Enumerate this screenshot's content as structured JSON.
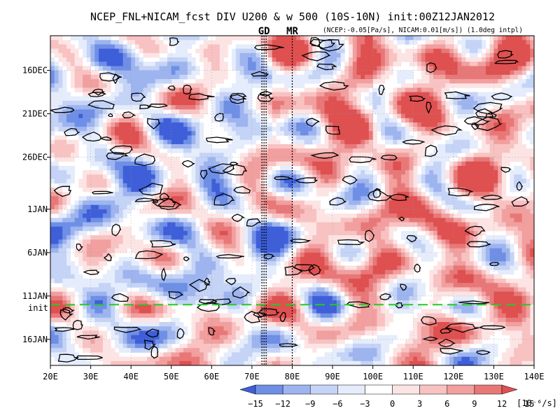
{
  "chart_data": {
    "type": "heatmap",
    "title": "NCEP_FNL+NICAM_fcst DIV U200 & w 500 (10S-10N) init:00Z12JAN2012",
    "subtitle": "(NCEP:-0.05[Pa/s], NICAM:0.01[m/s]) (1.0deg intpl)",
    "x_axis": {
      "ticks": [
        "20E",
        "30E",
        "40E",
        "50E",
        "60E",
        "70E",
        "80E",
        "90E",
        "100E",
        "110E",
        "120E",
        "130E",
        "140E"
      ],
      "range": [
        20,
        140
      ]
    },
    "y_axis": {
      "ticks": [
        "16DEC",
        "21DEC",
        "26DEC",
        "1JAN",
        "6JAN",
        "11JAN",
        "16JAN"
      ],
      "range_days": [
        "12DEC2011",
        "19JAN2012"
      ]
    },
    "init_line": {
      "label": "init",
      "date": "12JAN2012",
      "color": "#22cc22"
    },
    "markers": [
      {
        "label": "GD",
        "lon": 73,
        "color": "#dd2222"
      },
      {
        "label": "MR",
        "lon": 80,
        "color": "#dd2222"
      }
    ],
    "colorbar": {
      "levels": [
        -15,
        -12,
        -9,
        -6,
        -3,
        0,
        3,
        6,
        9,
        12,
        15
      ],
      "tick_labels": [
        "−15",
        "−12",
        "−9",
        "−6",
        "−3",
        "0",
        "3",
        "6",
        "9",
        "12",
        "15"
      ],
      "unit": "[10⁻⁶/s]",
      "colors": [
        "#3f5fd9",
        "#6f8fe6",
        "#9db4ef",
        "#c4d3f6",
        "#e5ecfb",
        "#ffffff",
        "#fde4e4",
        "#f8c2c2",
        "#f19f9f",
        "#e87878",
        "#df5050"
      ]
    }
  }
}
